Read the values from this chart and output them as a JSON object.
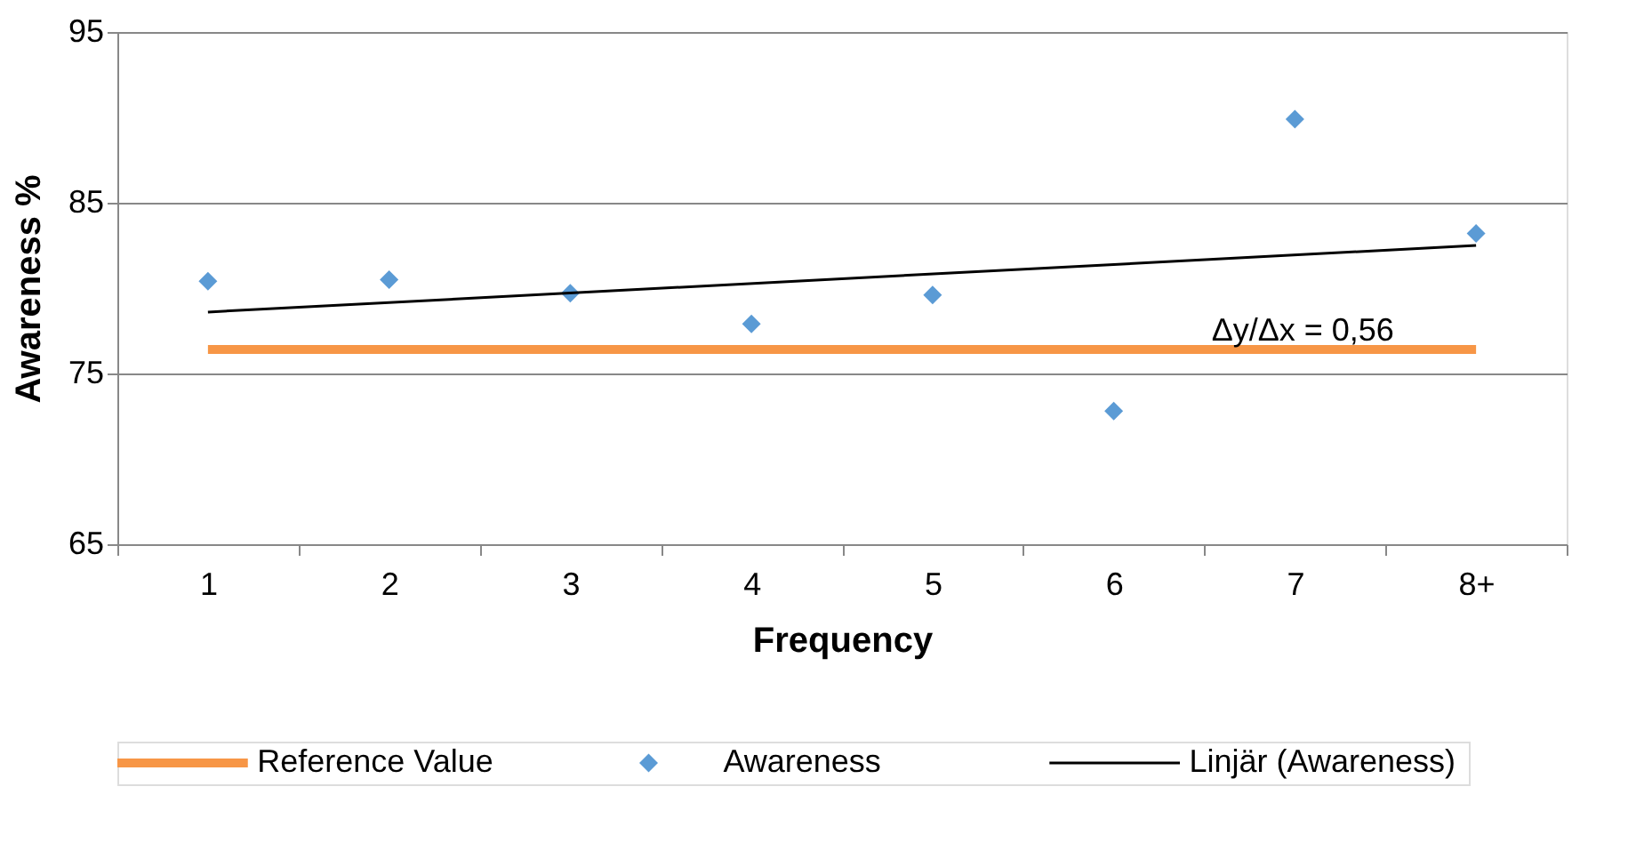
{
  "chart_data": {
    "type": "scatter",
    "xlabel": "Frequency",
    "ylabel": "Awareness %",
    "categories": [
      "1",
      "2",
      "3",
      "4",
      "5",
      "6",
      "7",
      "8+"
    ],
    "series": [
      {
        "name": "Reference Value",
        "type": "line",
        "color": "#f79646",
        "values": [
          76.4,
          76.4,
          76.4,
          76.4,
          76.4,
          76.4,
          76.4,
          76.4
        ]
      },
      {
        "name": "Awareness",
        "marker": "diamond",
        "color": "#5b9bd5",
        "values": [
          80.4,
          80.5,
          79.7,
          77.9,
          79.6,
          72.8,
          89.9,
          83.2
        ]
      },
      {
        "name": "Linjär (Awareness)",
        "type": "line",
        "color": "#000000",
        "x": [
          "1",
          "8+"
        ],
        "values": [
          78.6,
          82.5
        ]
      }
    ],
    "annotations": [
      "Δy/Δx = 0,56"
    ],
    "ylim": [
      65,
      95
    ],
    "yticks": [
      65,
      75,
      85,
      95
    ],
    "grid": "y",
    "legend": "bottom"
  }
}
